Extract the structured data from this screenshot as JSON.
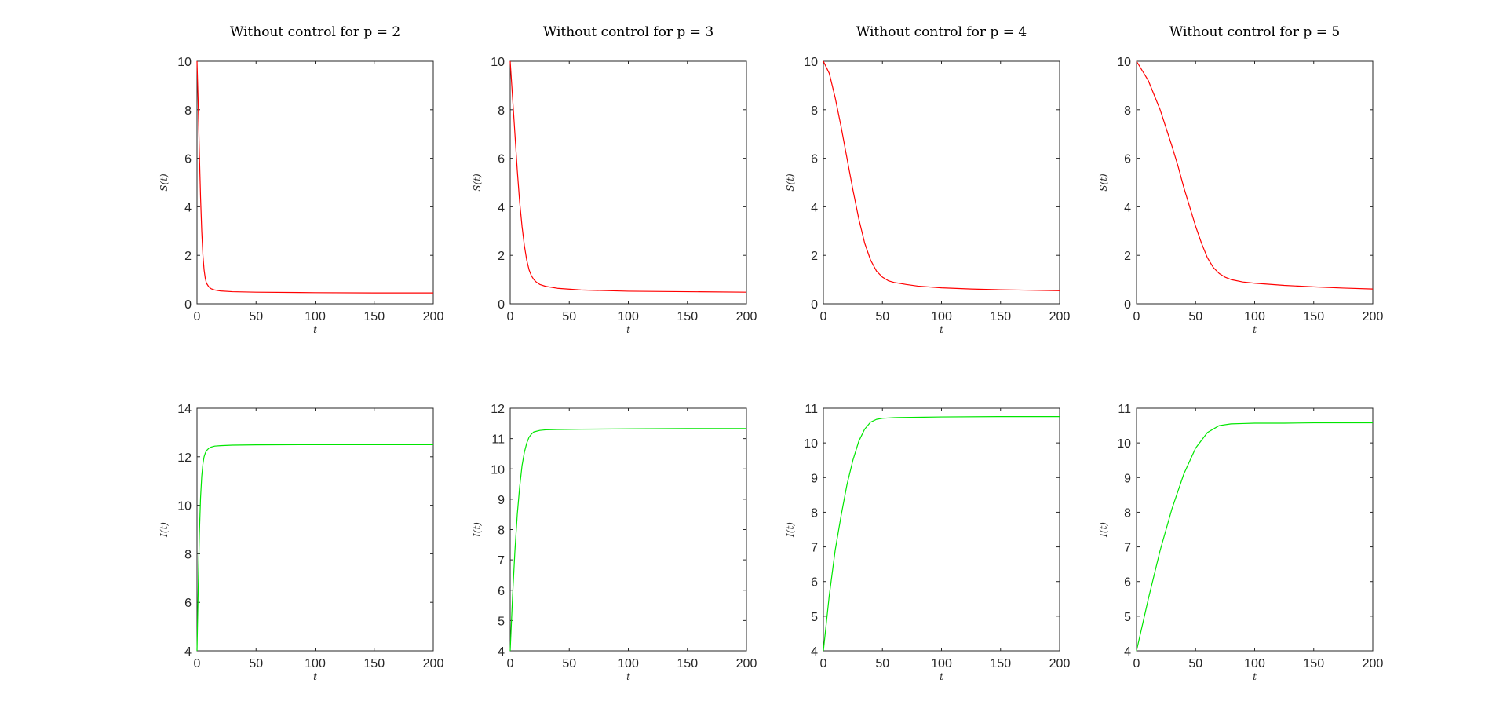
{
  "chart_data": [
    {
      "type": "line",
      "title": "Without control for p = 2",
      "xlabel": "t",
      "ylabel": "S(t)",
      "xlim": [
        0,
        200
      ],
      "ylim": [
        0,
        10
      ],
      "xticks": [
        0,
        50,
        100,
        150,
        200
      ],
      "yticks": [
        0,
        2,
        4,
        6,
        8,
        10
      ],
      "grid": false,
      "legend": "none",
      "color": "#ff0000",
      "series": [
        {
          "x": [
            0,
            1,
            2,
            3,
            4,
            5,
            6,
            7,
            8,
            10,
            12,
            15,
            20,
            30,
            50,
            100,
            150,
            200
          ],
          "y": [
            10,
            8.3,
            6.2,
            4.4,
            3.0,
            2.0,
            1.4,
            1.05,
            0.85,
            0.7,
            0.62,
            0.57,
            0.53,
            0.5,
            0.48,
            0.46,
            0.45,
            0.45
          ]
        }
      ]
    },
    {
      "type": "line",
      "title": "Without control for p = 3",
      "xlabel": "t",
      "ylabel": "S(t)",
      "xlim": [
        0,
        200
      ],
      "ylim": [
        0,
        10
      ],
      "xticks": [
        0,
        50,
        100,
        150,
        200
      ],
      "yticks": [
        0,
        2,
        4,
        6,
        8,
        10
      ],
      "grid": false,
      "legend": "none",
      "color": "#ff0000",
      "series": [
        {
          "x": [
            0,
            2,
            4,
            6,
            8,
            10,
            12,
            14,
            16,
            18,
            20,
            22,
            25,
            30,
            40,
            60,
            100,
            150,
            200
          ],
          "y": [
            10,
            8.5,
            7.0,
            5.5,
            4.2,
            3.2,
            2.4,
            1.8,
            1.4,
            1.15,
            1.0,
            0.9,
            0.8,
            0.72,
            0.64,
            0.57,
            0.52,
            0.5,
            0.48
          ]
        }
      ]
    },
    {
      "type": "line",
      "title": "Without control for p = 4",
      "xlabel": "t",
      "ylabel": "S(t)",
      "xlim": [
        0,
        200
      ],
      "ylim": [
        0,
        10
      ],
      "xticks": [
        0,
        50,
        100,
        150,
        200
      ],
      "yticks": [
        0,
        2,
        4,
        6,
        8,
        10
      ],
      "grid": false,
      "legend": "none",
      "color": "#ff0000",
      "series": [
        {
          "x": [
            0,
            5,
            10,
            15,
            20,
            25,
            30,
            35,
            40,
            45,
            50,
            55,
            60,
            70,
            80,
            100,
            125,
            150,
            175,
            200
          ],
          "y": [
            10,
            9.5,
            8.5,
            7.3,
            6.0,
            4.7,
            3.5,
            2.5,
            1.8,
            1.35,
            1.1,
            0.95,
            0.88,
            0.8,
            0.73,
            0.66,
            0.61,
            0.58,
            0.56,
            0.54
          ]
        }
      ]
    },
    {
      "type": "line",
      "title": "Without control for p = 5",
      "xlabel": "t",
      "ylabel": "S(t)",
      "xlim": [
        0,
        200
      ],
      "ylim": [
        0,
        10
      ],
      "xticks": [
        0,
        50,
        100,
        150,
        200
      ],
      "yticks": [
        0,
        2,
        4,
        6,
        8,
        10
      ],
      "grid": false,
      "legend": "none",
      "color": "#ff0000",
      "series": [
        {
          "x": [
            0,
            10,
            20,
            30,
            35,
            40,
            45,
            50,
            55,
            60,
            65,
            70,
            75,
            80,
            90,
            100,
            125,
            150,
            175,
            200
          ],
          "y": [
            10,
            9.2,
            8.0,
            6.5,
            5.7,
            4.8,
            4.0,
            3.2,
            2.5,
            1.9,
            1.5,
            1.25,
            1.1,
            1.0,
            0.9,
            0.85,
            0.76,
            0.7,
            0.65,
            0.61
          ]
        }
      ]
    },
    {
      "type": "line",
      "title": "",
      "xlabel": "t",
      "ylabel": "I(t)",
      "xlim": [
        0,
        200
      ],
      "ylim": [
        4,
        14
      ],
      "xticks": [
        0,
        50,
        100,
        150,
        200
      ],
      "yticks": [
        4,
        6,
        8,
        10,
        12,
        14
      ],
      "grid": false,
      "legend": "none",
      "color": "#00e600",
      "series": [
        {
          "x": [
            0,
            1,
            2,
            3,
            4,
            5,
            6,
            7,
            8,
            10,
            12,
            15,
            20,
            30,
            50,
            100,
            150,
            200
          ],
          "y": [
            4,
            6.5,
            8.8,
            10.3,
            11.2,
            11.7,
            12.0,
            12.15,
            12.25,
            12.35,
            12.4,
            12.44,
            12.46,
            12.48,
            12.49,
            12.5,
            12.5,
            12.5
          ]
        }
      ]
    },
    {
      "type": "line",
      "title": "",
      "xlabel": "t",
      "ylabel": "I(t)",
      "xlim": [
        0,
        200
      ],
      "ylim": [
        4,
        12
      ],
      "xticks": [
        0,
        50,
        100,
        150,
        200
      ],
      "yticks": [
        4,
        5,
        6,
        7,
        8,
        9,
        10,
        11,
        12
      ],
      "grid": false,
      "legend": "none",
      "color": "#00e600",
      "series": [
        {
          "x": [
            0,
            2,
            4,
            6,
            8,
            10,
            12,
            14,
            16,
            18,
            20,
            25,
            30,
            40,
            60,
            100,
            150,
            200
          ],
          "y": [
            4,
            5.8,
            7.3,
            8.5,
            9.4,
            10.1,
            10.55,
            10.85,
            11.05,
            11.15,
            11.22,
            11.27,
            11.29,
            11.3,
            11.31,
            11.32,
            11.33,
            11.33
          ]
        }
      ]
    },
    {
      "type": "line",
      "title": "",
      "xlabel": "t",
      "ylabel": "I(t)",
      "xlim": [
        0,
        200
      ],
      "ylim": [
        4,
        11
      ],
      "xticks": [
        0,
        50,
        100,
        150,
        200
      ],
      "yticks": [
        4,
        5,
        6,
        7,
        8,
        9,
        10,
        11
      ],
      "grid": false,
      "legend": "none",
      "color": "#00e600",
      "series": [
        {
          "x": [
            0,
            5,
            10,
            15,
            20,
            25,
            30,
            35,
            40,
            45,
            50,
            60,
            80,
            100,
            150,
            200
          ],
          "y": [
            4,
            5.6,
            6.9,
            7.9,
            8.8,
            9.5,
            10.05,
            10.4,
            10.6,
            10.68,
            10.71,
            10.73,
            10.74,
            10.75,
            10.76,
            10.76
          ]
        }
      ]
    },
    {
      "type": "line",
      "title": "",
      "xlabel": "t",
      "ylabel": "I(t)",
      "xlim": [
        0,
        200
      ],
      "ylim": [
        4,
        11
      ],
      "xticks": [
        0,
        50,
        100,
        150,
        200
      ],
      "yticks": [
        4,
        5,
        6,
        7,
        8,
        9,
        10,
        11
      ],
      "grid": false,
      "legend": "none",
      "color": "#00e600",
      "series": [
        {
          "x": [
            0,
            10,
            20,
            30,
            40,
            50,
            60,
            70,
            80,
            90,
            100,
            125,
            150,
            175,
            200
          ],
          "y": [
            4,
            5.5,
            6.9,
            8.1,
            9.1,
            9.85,
            10.3,
            10.5,
            10.55,
            10.56,
            10.57,
            10.57,
            10.58,
            10.58,
            10.58
          ]
        }
      ]
    }
  ]
}
